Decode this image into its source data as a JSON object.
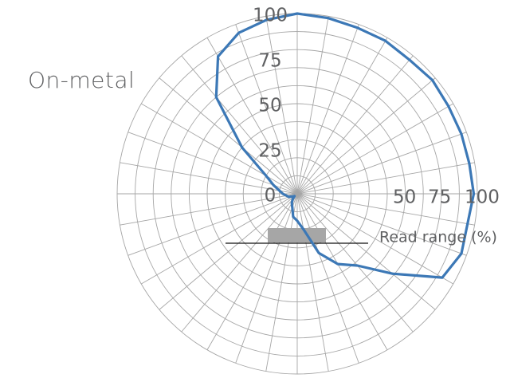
{
  "subtitle": "On-metal",
  "chart_data": {
    "type": "polar-line",
    "title": "",
    "series": [
      {
        "angles_deg": [
          0,
          10,
          20,
          30,
          40,
          50,
          60,
          70,
          80,
          90,
          100,
          110,
          120,
          130,
          140,
          150,
          160,
          170,
          180,
          190,
          200,
          210,
          220,
          230,
          240,
          250,
          260,
          270,
          280,
          290,
          300,
          310,
          320,
          330,
          340,
          350
        ],
        "values": [
          100,
          99,
          98,
          98,
          97,
          98,
          97,
          97,
          97,
          98,
          96,
          97,
          93,
          69,
          52,
          45,
          35,
          20,
          15,
          13,
          8,
          6,
          4,
          2,
          3,
          5,
          6,
          8,
          10,
          14,
          20,
          40,
          70,
          88,
          95,
          98
        ],
        "color": "#3c78b6"
      }
    ],
    "radial_axis": {
      "range": [
        0,
        100
      ],
      "ticks": [
        "0",
        "25",
        "50",
        "75",
        "100"
      ],
      "tick_values": [
        0,
        25,
        50,
        75,
        100
      ],
      "right_ticks": [
        "50",
        "75",
        "100"
      ],
      "right_tick_values": [
        50,
        75,
        100
      ],
      "label": "Read range (%)"
    },
    "angular_grid": {
      "spokes": 36
    },
    "grid": true,
    "colors": {
      "line": "#3c78b6",
      "grid": "#a6a6a6",
      "tag": "#a6a6a6",
      "text": "#5f6062"
    }
  }
}
